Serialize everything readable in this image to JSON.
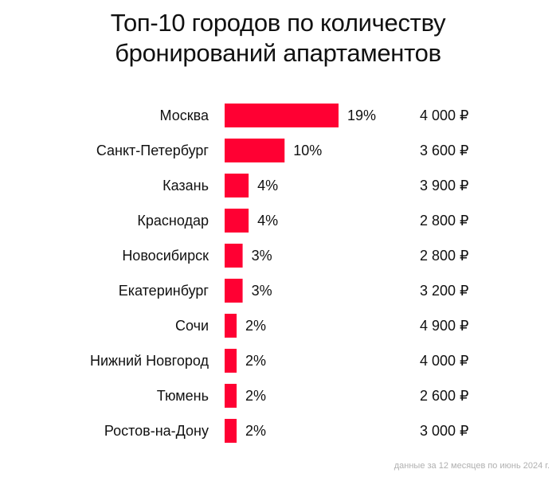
{
  "title_line1": "Топ-10 городов по количеству",
  "title_line2": "бронирований апартаментов",
  "footnote": "данные за 12 месяцев по июнь 2024 г.",
  "colors": {
    "bar": "#ff0033",
    "text": "#111111",
    "footnote": "#b0b0b0"
  },
  "chart_data": {
    "type": "bar",
    "orientation": "horizontal",
    "title": "Топ-10 городов по количеству бронирований апартаментов",
    "categories": [
      "Москва",
      "Санкт-Петербург",
      "Казань",
      "Краснодар",
      "Новосибирск",
      "Екатеринбург",
      "Сочи",
      "Нижний Новгород",
      "Тюмень",
      "Ростов-на-Дону"
    ],
    "values": [
      19,
      10,
      4,
      4,
      3,
      3,
      2,
      2,
      2,
      2
    ],
    "value_labels": [
      "19%",
      "10%",
      "4%",
      "4%",
      "3%",
      "3%",
      "2%",
      "2%",
      "2%",
      "2%"
    ],
    "price_labels": [
      "4 000 ₽",
      "3 600 ₽",
      "3 900 ₽",
      "2 800 ₽",
      "2 800 ₽",
      "3 200 ₽",
      "4 900 ₽",
      "4 000 ₽",
      "2 600 ₽",
      "3 000 ₽"
    ],
    "grid": false,
    "legend": "none"
  }
}
